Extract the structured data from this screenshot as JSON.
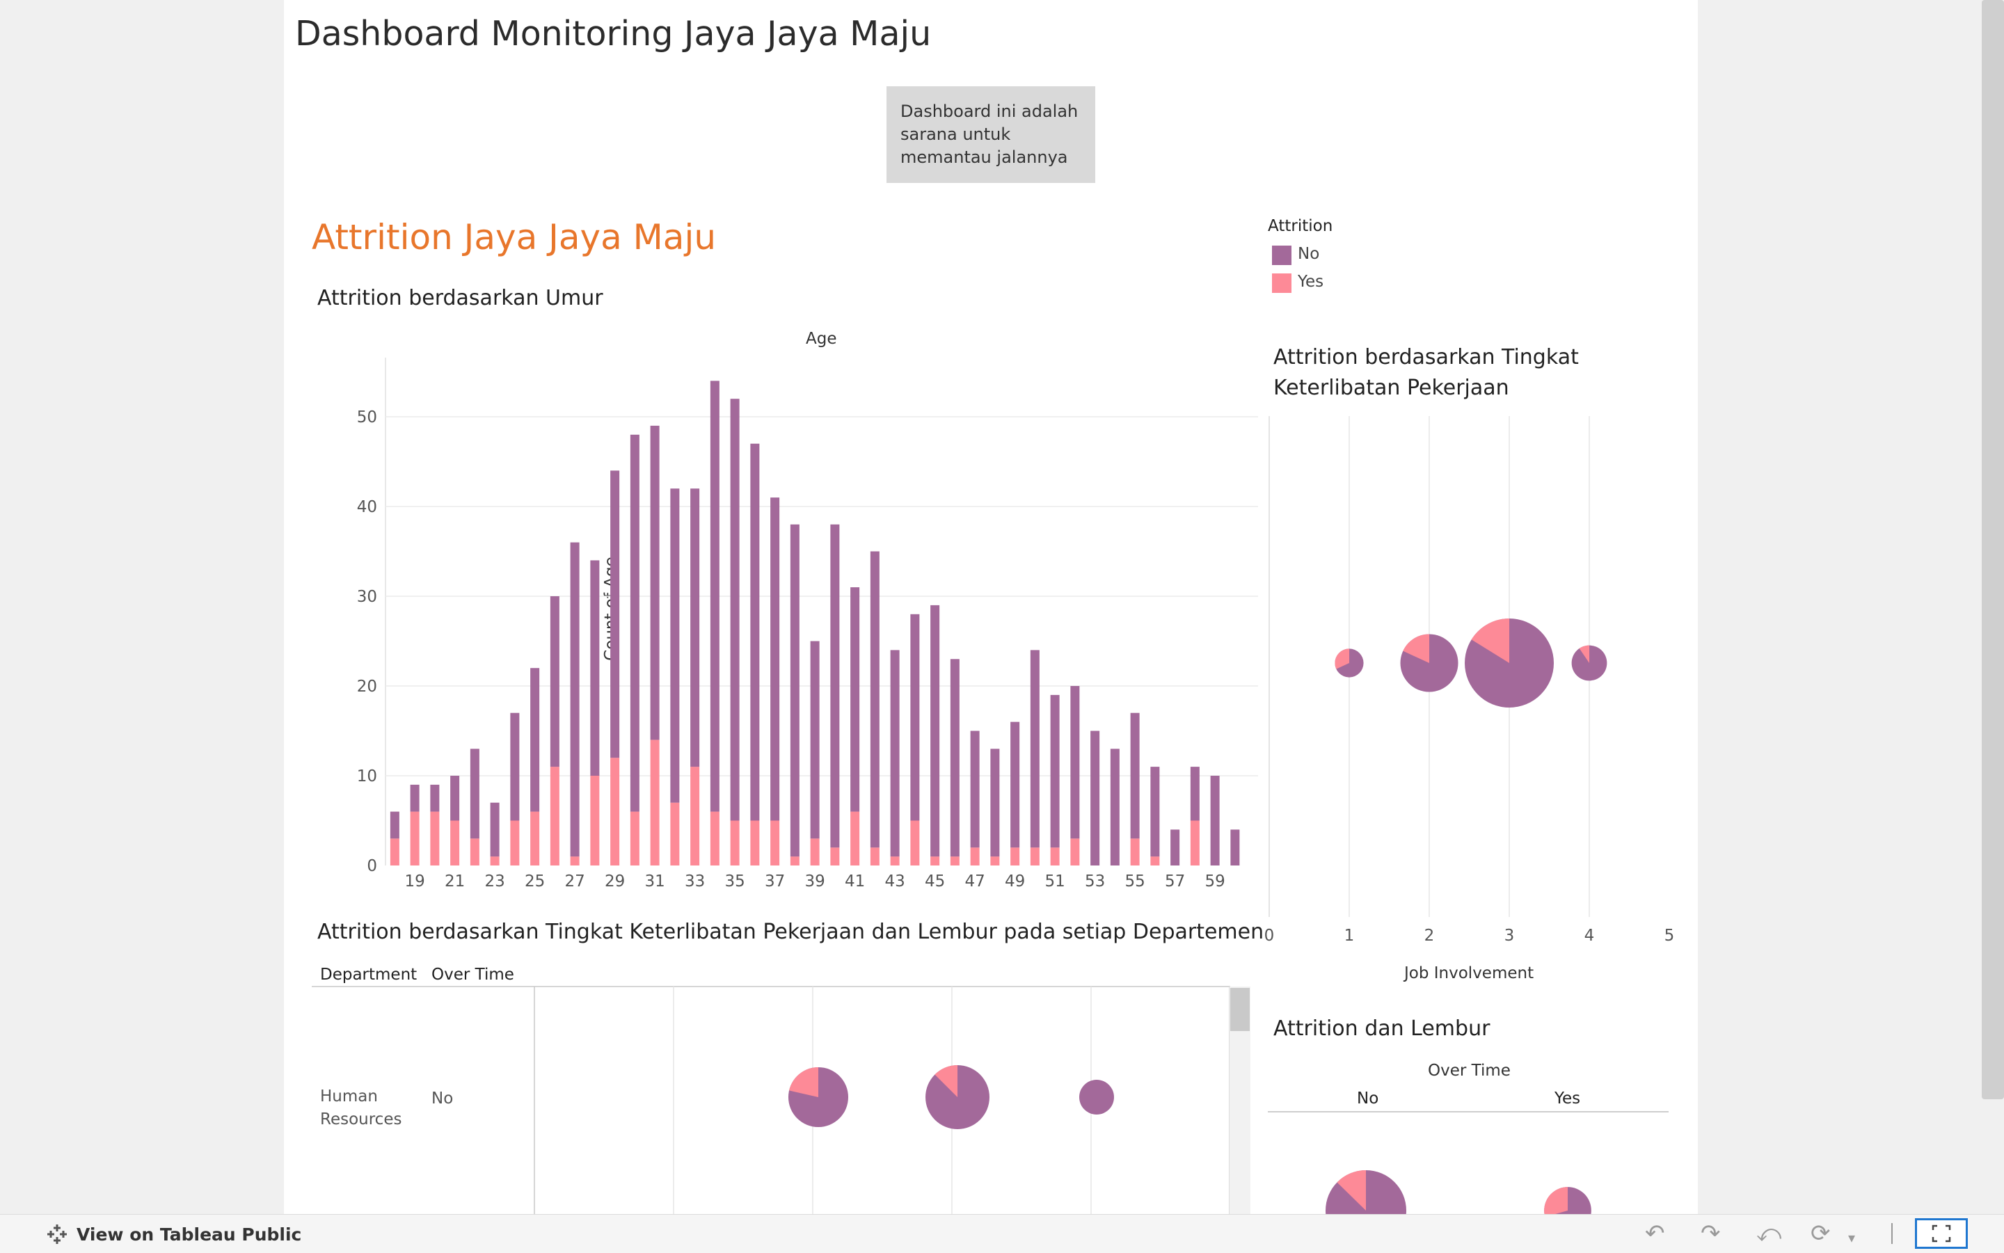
{
  "dashboard": {
    "title": "Dashboard Monitoring Jaya Jaya Maju",
    "description": "Dashboard ini adalah sarana untuk memantau jalannya",
    "section_title": "Attrition Jaya Jaya Maju",
    "section_color": "#e8762b"
  },
  "legend": {
    "title": "Attrition",
    "items": [
      {
        "label": "No",
        "color": "#a3699a"
      },
      {
        "label": "Yes",
        "color": "#fd8a97"
      }
    ]
  },
  "age_chart": {
    "title": "Attrition berdasarkan Umur",
    "header": "Age",
    "ylabel": "Count of Age",
    "yticks": [
      "0",
      "10",
      "20",
      "30",
      "40",
      "50"
    ],
    "xticks": [
      "19",
      "21",
      "23",
      "25",
      "27",
      "29",
      "31",
      "33",
      "35",
      "37",
      "39",
      "41",
      "43",
      "45",
      "47",
      "49",
      "51",
      "53",
      "55",
      "57",
      "59"
    ]
  },
  "job_involvement_chart": {
    "title_line1": "Attrition berdasarkan Tingkat",
    "title_line2": "Keterlibatan  Pekerjaan",
    "xlabel": "Job Involvement",
    "xticks": [
      "0",
      "1",
      "2",
      "3",
      "4",
      "5"
    ]
  },
  "dept_chart": {
    "title": "Attrition berdasarkan Tingkat Keterlibatan Pekerjaan dan Lembur pada setiap Departemen",
    "col_department": "Department",
    "col_overtime": "Over Time",
    "row_department": "Human Resources",
    "row_dept_line1": "Human",
    "row_dept_line2": "Resources",
    "row_overtime": "No"
  },
  "overtime_chart": {
    "title": "Attrition dan  Lembur",
    "header": "Over Time",
    "cols": [
      "No",
      "Yes"
    ]
  },
  "toolbar": {
    "view_on_tableau": "View on Tableau Public",
    "icons": [
      "tableau-logo-icon",
      "undo-icon",
      "redo-icon",
      "revert-icon",
      "refresh-icon",
      "dropdown-icon",
      "fullscreen-icon"
    ]
  },
  "chart_data": [
    {
      "type": "bar",
      "title": "Attrition berdasarkan Umur",
      "xlabel": "Age",
      "ylabel": "Count of Age",
      "ylim": [
        0,
        55
      ],
      "grid": true,
      "categories": [
        18,
        19,
        20,
        21,
        22,
        23,
        24,
        25,
        26,
        27,
        28,
        29,
        30,
        31,
        32,
        33,
        34,
        35,
        36,
        37,
        38,
        39,
        40,
        41,
        42,
        43,
        44,
        45,
        46,
        47,
        48,
        49,
        50,
        51,
        52,
        53,
        54,
        55,
        56,
        57,
        58,
        59,
        60
      ],
      "series": [
        {
          "name": "No",
          "values": [
            3,
            3,
            3,
            5,
            10,
            6,
            12,
            16,
            19,
            35,
            24,
            32,
            42,
            35,
            35,
            31,
            48,
            47,
            42,
            36,
            37,
            22,
            36,
            25,
            33,
            23,
            23,
            28,
            22,
            13,
            12,
            14,
            22,
            17,
            17,
            15,
            13,
            14,
            10,
            4,
            6,
            10,
            4
          ]
        },
        {
          "name": "Yes",
          "values": [
            3,
            6,
            6,
            5,
            3,
            1,
            5,
            6,
            11,
            1,
            10,
            12,
            6,
            14,
            7,
            11,
            6,
            5,
            5,
            5,
            1,
            3,
            2,
            6,
            2,
            1,
            5,
            1,
            1,
            2,
            1,
            2,
            2,
            2,
            3,
            0,
            0,
            3,
            1,
            0,
            5,
            0,
            0
          ]
        }
      ]
    },
    {
      "type": "pie",
      "title": "Attrition berdasarkan Tingkat Keterlibatan Pekerjaan",
      "xlabel": "Job Involvement",
      "xlim": [
        0,
        5
      ],
      "points": [
        {
          "x": 1,
          "no": 47,
          "yes": 22
        },
        {
          "x": 2,
          "no": 230,
          "yes": 51
        },
        {
          "x": 3,
          "no": 560,
          "yes": 108
        },
        {
          "x": 4,
          "no": 95,
          "yes": 10
        }
      ]
    },
    {
      "type": "pie",
      "title": "Attrition berdasarkan Tingkat Keterlibatan Pekerjaan dan Lembur pada setiap Departemen",
      "department": "Human Resources",
      "over_time": "No",
      "points": [
        {
          "x": 2,
          "no": 11,
          "yes": 3
        },
        {
          "x": 3,
          "no": 14,
          "yes": 2
        },
        {
          "x": 4,
          "no": 4,
          "yes": 0
        }
      ]
    },
    {
      "type": "pie",
      "title": "Attrition dan  Lembur",
      "categories": [
        "No",
        "Yes"
      ],
      "points": [
        {
          "x": "No",
          "no": 689,
          "yes": 100
        },
        {
          "x": "Yes",
          "no": 190,
          "yes": 79
        }
      ]
    }
  ]
}
